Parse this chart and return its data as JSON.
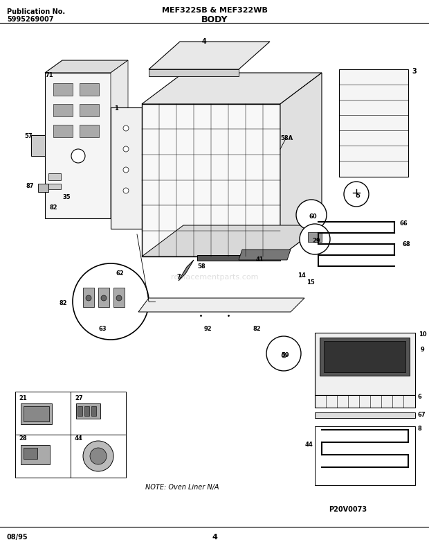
{
  "title_left_line1": "Publication No.",
  "title_left_line2": "5995269007",
  "title_center_line1": "MEF322SB & MEF322WB",
  "title_center_line2": "BODY",
  "footer_left": "08/95",
  "footer_center": "4",
  "note_text": "NOTE: Oven Liner N/A",
  "watermark": "replacementparts.com",
  "part_id": "P20V0073",
  "bg_color": "#ffffff"
}
